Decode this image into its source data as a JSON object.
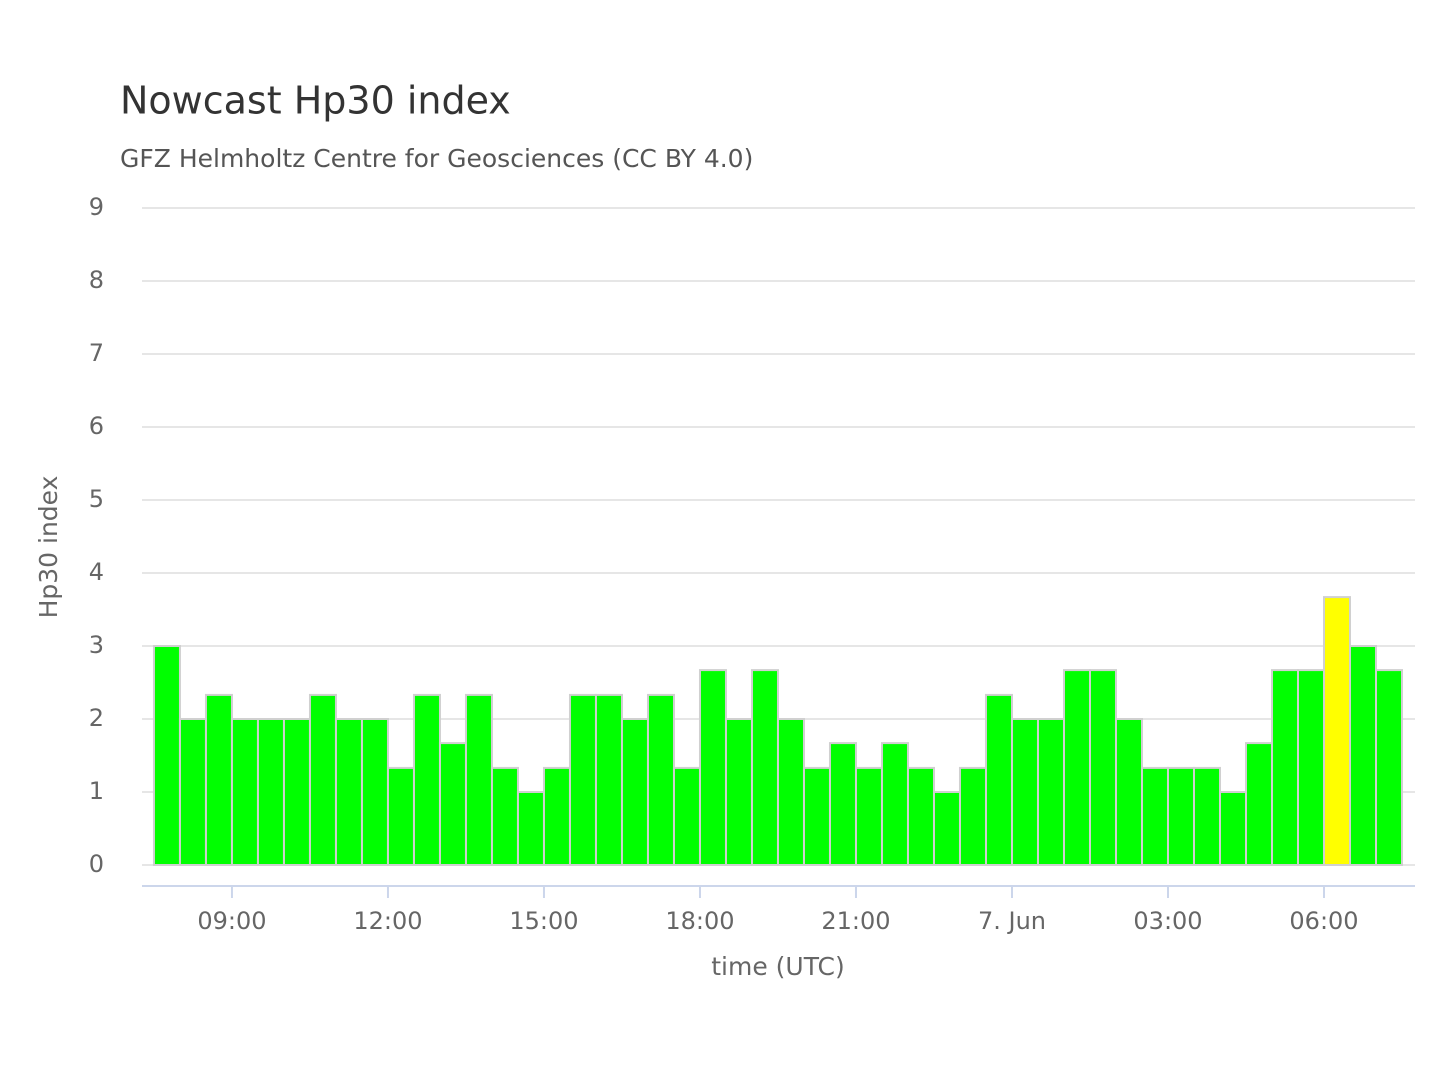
{
  "chart_data": {
    "type": "bar",
    "title": "Nowcast Hp30 index",
    "subtitle": "GFZ Helmholtz Centre for Geosciences (CC BY 4.0)",
    "x_label": "time (UTC)",
    "y_label": "Hp30 index",
    "x": [
      7.5,
      8,
      8.5,
      9,
      9.5,
      10,
      10.5,
      11,
      11.5,
      12,
      12.5,
      13,
      13.5,
      14,
      14.5,
      15,
      15.5,
      16,
      16.5,
      17,
      17.5,
      18,
      18.5,
      19,
      19.5,
      20,
      20.5,
      21,
      21.5,
      22,
      22.5,
      23,
      23.5,
      24,
      24.5,
      25,
      25.5,
      26,
      26.5,
      27,
      27.5,
      28,
      28.5,
      29,
      29.5,
      30,
      30.5,
      31
    ],
    "values": [
      3.0,
      2.0,
      2.33,
      2.0,
      2.0,
      2.0,
      2.33,
      2.0,
      2.0,
      1.33,
      2.33,
      1.67,
      2.33,
      1.33,
      1.0,
      1.33,
      2.33,
      2.33,
      2.0,
      2.33,
      1.33,
      2.67,
      2.0,
      2.67,
      2.0,
      1.33,
      1.67,
      1.33,
      1.67,
      1.33,
      1.0,
      1.33,
      2.33,
      2.0,
      2.0,
      2.67,
      2.67,
      2.0,
      1.33,
      1.33,
      1.33,
      1.0,
      1.67,
      2.67,
      2.67,
      3.67,
      3.0,
      2.67
    ],
    "colors": [
      "#00ff00",
      "#00ff00",
      "#00ff00",
      "#00ff00",
      "#00ff00",
      "#00ff00",
      "#00ff00",
      "#00ff00",
      "#00ff00",
      "#00ff00",
      "#00ff00",
      "#00ff00",
      "#00ff00",
      "#00ff00",
      "#00ff00",
      "#00ff00",
      "#00ff00",
      "#00ff00",
      "#00ff00",
      "#00ff00",
      "#00ff00",
      "#00ff00",
      "#00ff00",
      "#00ff00",
      "#00ff00",
      "#00ff00",
      "#00ff00",
      "#00ff00",
      "#00ff00",
      "#00ff00",
      "#00ff00",
      "#00ff00",
      "#00ff00",
      "#00ff00",
      "#00ff00",
      "#00ff00",
      "#00ff00",
      "#00ff00",
      "#00ff00",
      "#00ff00",
      "#00ff00",
      "#00ff00",
      "#00ff00",
      "#00ff00",
      "#00ff00",
      "#ffff00",
      "#00ff00",
      "#00ff00"
    ],
    "bar_width": 0.5,
    "xlim": [
      7.27,
      31.75
    ],
    "xticks": [
      {
        "value": 9,
        "label": "09:00"
      },
      {
        "value": 12,
        "label": "12:00"
      },
      {
        "value": 15,
        "label": "15:00"
      },
      {
        "value": 18,
        "label": "18:00"
      },
      {
        "value": 21,
        "label": "21:00"
      },
      {
        "value": 24,
        "label": "7. Jun"
      },
      {
        "value": 27,
        "label": "03:00"
      },
      {
        "value": 30,
        "label": "06:00"
      }
    ],
    "ylim": [
      0,
      9
    ],
    "yticks": [
      0,
      1,
      2,
      3,
      4,
      5,
      6,
      7,
      8,
      9
    ],
    "grid": true
  }
}
